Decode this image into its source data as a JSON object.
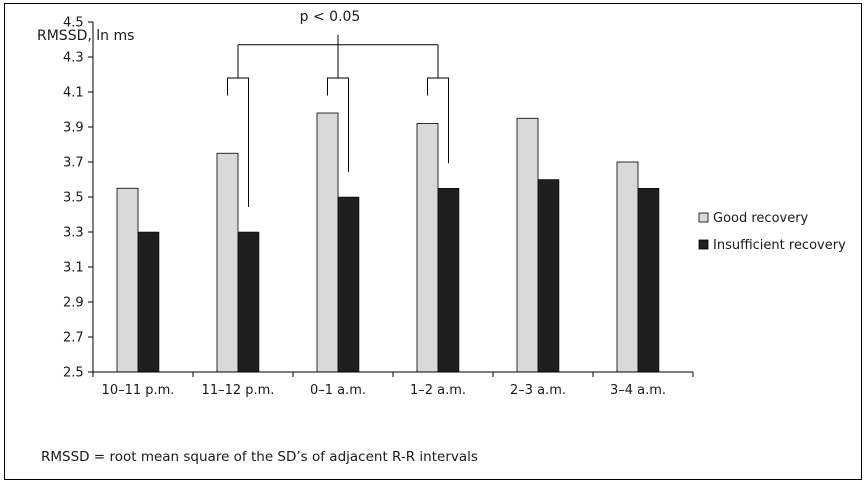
{
  "chart_data": {
    "type": "bar",
    "ylabel": "RMSSD, ln ms",
    "xlabel": "",
    "ylim": [
      2.5,
      4.5
    ],
    "yticks": [
      "2.5",
      "2.7",
      "2.9",
      "3.1",
      "3.3",
      "3.5",
      "3.7",
      "3.9",
      "4.1",
      "4.3",
      "4.5"
    ],
    "categories": [
      "10–11 p.m.",
      "11–12 p.m.",
      "0–1 a.m.",
      "1–2 a.m.",
      "2–3 a.m.",
      "3–4 a.m."
    ],
    "series": [
      {
        "name": "Good recovery",
        "values": [
          3.55,
          3.75,
          3.98,
          3.92,
          3.95,
          3.7
        ],
        "color": "#d9d9d9"
      },
      {
        "name": "Insufficient recovery",
        "values": [
          3.3,
          3.3,
          3.5,
          3.55,
          3.6,
          3.55
        ],
        "color": "#1f1f1f"
      }
    ],
    "annotation": {
      "text": "p < 0.05",
      "categories": [
        "11–12 p.m.",
        "0–1 a.m.",
        "1–2 a.m."
      ]
    },
    "legend": "right",
    "grid": false
  },
  "footnote": "RMSSD = root mean square of the SD’s of adjacent R-R intervals"
}
